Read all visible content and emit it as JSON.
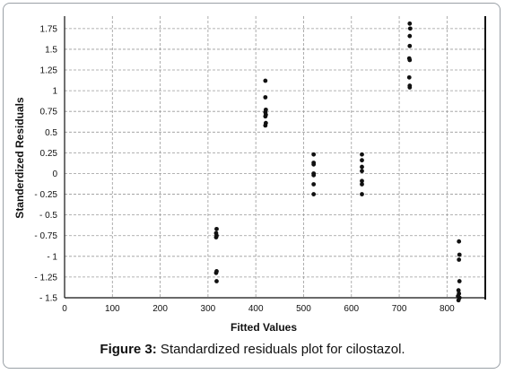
{
  "caption": {
    "label": "Figure 3:",
    "text": " Standardized residuals plot for cilostazol."
  },
  "chart_data": {
    "type": "scatter",
    "title": "",
    "xlabel": "Fitted Values",
    "ylabel": "Standerdized Residuals",
    "xlim": [
      0,
      880
    ],
    "ylim": [
      -1.5,
      1.9
    ],
    "x_ticks": [
      "0",
      "100",
      "200",
      "300",
      "400",
      "500",
      "600",
      "700",
      "800"
    ],
    "y_ticks": [
      "1.75",
      "1.5",
      "1.25",
      "1",
      "0.75",
      "0.5",
      "0.25",
      "0",
      "- 0.25",
      "- 0.5",
      "- 0.75",
      "- 1",
      "- 1.25",
      "- 1.5"
    ],
    "grid": true,
    "marker_color": "#111111",
    "series": [
      {
        "points": [
          [
            318,
            -0.67
          ],
          [
            317,
            -0.72
          ],
          [
            318,
            -0.75
          ],
          [
            317,
            -0.77
          ],
          [
            318,
            -1.18
          ],
          [
            317,
            -1.2
          ],
          [
            318,
            -1.3
          ],
          [
            420,
            1.12
          ],
          [
            420,
            0.92
          ],
          [
            421,
            0.77
          ],
          [
            420,
            0.74
          ],
          [
            421,
            0.71
          ],
          [
            420,
            0.69
          ],
          [
            421,
            0.61
          ],
          [
            420,
            0.58
          ],
          [
            521,
            0.23
          ],
          [
            521,
            0.13
          ],
          [
            521,
            0.11
          ],
          [
            521,
            0.0
          ],
          [
            521,
            -0.02
          ],
          [
            521,
            -0.13
          ],
          [
            521,
            -0.25
          ],
          [
            622,
            0.23
          ],
          [
            622,
            0.16
          ],
          [
            622,
            0.08
          ],
          [
            622,
            0.03
          ],
          [
            622,
            -0.09
          ],
          [
            622,
            -0.13
          ],
          [
            622,
            -0.25
          ],
          [
            722,
            1.81
          ],
          [
            723,
            1.75
          ],
          [
            722,
            1.66
          ],
          [
            722,
            1.54
          ],
          [
            721,
            1.39
          ],
          [
            722,
            1.37
          ],
          [
            721,
            1.16
          ],
          [
            722,
            1.06
          ],
          [
            722,
            1.04
          ],
          [
            825,
            -0.82
          ],
          [
            826,
            -0.98
          ],
          [
            825,
            -1.04
          ],
          [
            826,
            -1.3
          ],
          [
            824,
            -1.41
          ],
          [
            825,
            -1.45
          ],
          [
            823,
            -1.48
          ],
          [
            826,
            -1.5
          ],
          [
            824,
            -1.53
          ]
        ]
      }
    ]
  }
}
